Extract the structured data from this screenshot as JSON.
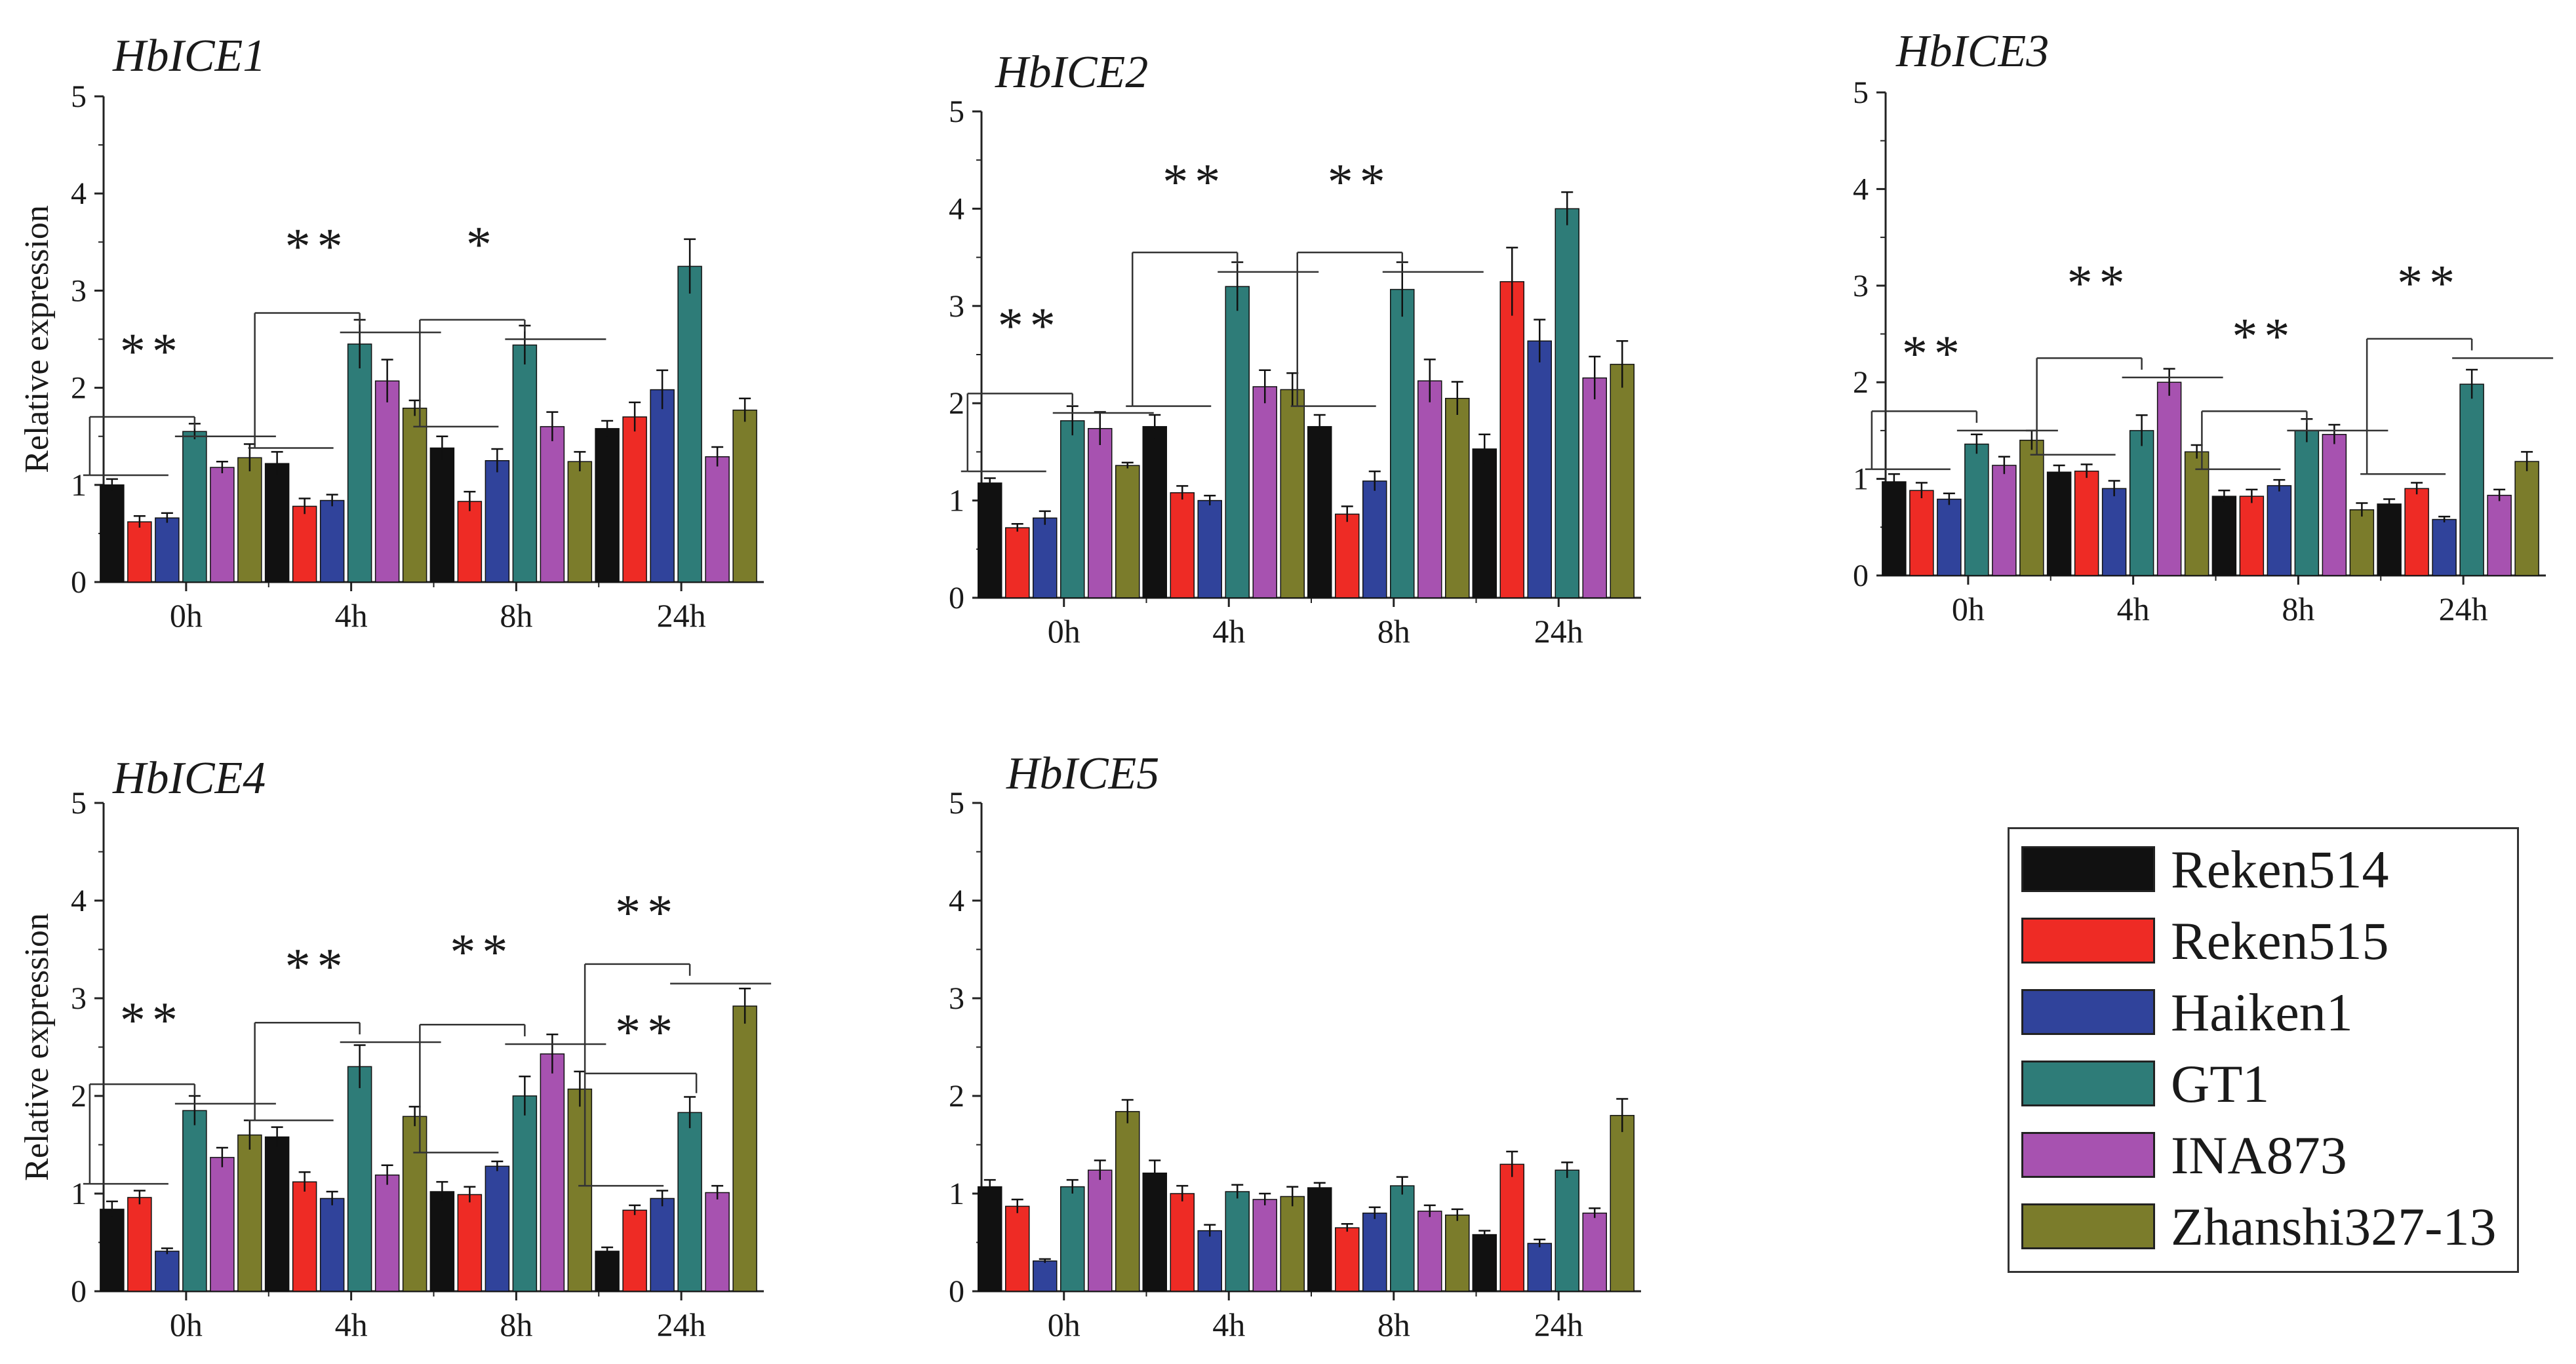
{
  "colors": {
    "Reken514": "#111111",
    "Reken515": "#ee2b25",
    "Haiken1": "#30439b",
    "GT1": "#2e7c78",
    "INA873": "#a752b0",
    "Zhanshi327-13": "#7b7c2b"
  },
  "legend": {
    "items": [
      {
        "label": "Reken514",
        "color": "#111111"
      },
      {
        "label": "Reken515",
        "color": "#ee2b25"
      },
      {
        "label": "Haiken1",
        "color": "#30439b"
      },
      {
        "label": "GT1",
        "color": "#2e7c78"
      },
      {
        "label": "INA873",
        "color": "#a752b0"
      },
      {
        "label": "Zhanshi327-13",
        "color": "#7b7c2b"
      }
    ]
  },
  "chart_data": [
    {
      "type": "bar",
      "title": "HbICE1",
      "ylabel": "Relative expression",
      "xlabel": "",
      "ylim": [
        0,
        5
      ],
      "yticks": [
        0,
        1,
        2,
        3,
        4,
        5
      ],
      "categories": [
        "0h",
        "4h",
        "8h",
        "24h"
      ],
      "series": [
        {
          "name": "Reken514",
          "values": [
            1.0,
            1.22,
            1.38,
            1.58
          ],
          "errors": [
            0.06,
            0.12,
            0.12,
            0.08
          ]
        },
        {
          "name": "Reken515",
          "values": [
            0.62,
            0.78,
            0.83,
            1.7
          ],
          "errors": [
            0.06,
            0.08,
            0.1,
            0.15
          ]
        },
        {
          "name": "Haiken1",
          "values": [
            0.66,
            0.84,
            1.25,
            1.98
          ],
          "errors": [
            0.05,
            0.06,
            0.12,
            0.2
          ]
        },
        {
          "name": "GT1",
          "values": [
            1.55,
            2.45,
            2.44,
            3.25
          ],
          "errors": [
            0.08,
            0.25,
            0.2,
            0.28
          ]
        },
        {
          "name": "INA873",
          "values": [
            1.18,
            2.07,
            1.6,
            1.29
          ],
          "errors": [
            0.06,
            0.22,
            0.15,
            0.1
          ]
        },
        {
          "name": "Zhanshi327-13",
          "values": [
            1.28,
            1.79,
            1.24,
            1.77
          ],
          "errors": [
            0.14,
            0.08,
            0.1,
            0.12
          ]
        }
      ],
      "significance": [
        "**",
        "**",
        "*",
        ""
      ]
    },
    {
      "type": "bar",
      "title": "HbICE2",
      "ylabel": "",
      "xlabel": "",
      "ylim": [
        0,
        5
      ],
      "yticks": [
        0,
        1,
        2,
        3,
        4,
        5
      ],
      "categories": [
        "0h",
        "4h",
        "8h",
        "24h"
      ],
      "series": [
        {
          "name": "Reken514",
          "values": [
            1.18,
            1.76,
            1.76,
            1.53
          ],
          "errors": [
            0.05,
            0.12,
            0.12,
            0.15
          ]
        },
        {
          "name": "Reken515",
          "values": [
            0.72,
            1.08,
            0.86,
            3.25
          ],
          "errors": [
            0.04,
            0.07,
            0.08,
            0.35
          ]
        },
        {
          "name": "Haiken1",
          "values": [
            0.82,
            1.0,
            1.2,
            2.64
          ],
          "errors": [
            0.07,
            0.05,
            0.1,
            0.22
          ]
        },
        {
          "name": "GT1",
          "values": [
            1.82,
            3.2,
            3.17,
            4.0
          ],
          "errors": [
            0.15,
            0.25,
            0.28,
            0.17
          ]
        },
        {
          "name": "INA873",
          "values": [
            1.74,
            2.17,
            2.23,
            2.26
          ],
          "errors": [
            0.17,
            0.17,
            0.22,
            0.22
          ]
        },
        {
          "name": "Zhanshi327-13",
          "values": [
            1.36,
            2.14,
            2.05,
            2.4
          ],
          "errors": [
            0.03,
            0.17,
            0.17,
            0.24
          ]
        }
      ],
      "significance": [
        "**",
        "**",
        "**",
        ""
      ]
    },
    {
      "type": "bar",
      "title": "HbICE3",
      "ylabel": "",
      "xlabel": "",
      "ylim": [
        0,
        5
      ],
      "yticks": [
        0,
        1,
        2,
        3,
        4,
        5
      ],
      "categories": [
        "0h",
        "4h",
        "8h",
        "24h"
      ],
      "series": [
        {
          "name": "Reken514",
          "values": [
            0.97,
            1.07,
            0.82,
            0.74
          ],
          "errors": [
            0.08,
            0.07,
            0.06,
            0.05
          ]
        },
        {
          "name": "Reken515",
          "values": [
            0.88,
            1.08,
            0.82,
            0.9
          ],
          "errors": [
            0.08,
            0.07,
            0.07,
            0.06
          ]
        },
        {
          "name": "Haiken1",
          "values": [
            0.79,
            0.9,
            0.93,
            0.58
          ],
          "errors": [
            0.06,
            0.08,
            0.06,
            0.03
          ]
        },
        {
          "name": "GT1",
          "values": [
            1.36,
            1.5,
            1.5,
            1.98
          ],
          "errors": [
            0.1,
            0.16,
            0.12,
            0.15
          ]
        },
        {
          "name": "INA873",
          "values": [
            1.14,
            2.0,
            1.46,
            0.83
          ],
          "errors": [
            0.09,
            0.14,
            0.1,
            0.06
          ]
        },
        {
          "name": "Zhanshi327-13",
          "values": [
            1.4,
            1.28,
            0.68,
            1.18
          ],
          "errors": [
            0.1,
            0.07,
            0.07,
            0.1
          ]
        }
      ],
      "significance": [
        "**",
        "**",
        "**",
        "**"
      ]
    },
    {
      "type": "bar",
      "title": "HbICE4",
      "ylabel": "Relative expression",
      "xlabel": "",
      "ylim": [
        0,
        5
      ],
      "yticks": [
        0,
        1,
        2,
        3,
        4,
        5
      ],
      "categories": [
        "0h",
        "4h",
        "8h",
        "24h"
      ],
      "series": [
        {
          "name": "Reken514",
          "values": [
            0.84,
            1.58,
            1.02,
            0.41
          ],
          "errors": [
            0.08,
            0.1,
            0.1,
            0.04
          ]
        },
        {
          "name": "Reken515",
          "values": [
            0.96,
            1.12,
            0.99,
            0.83
          ],
          "errors": [
            0.07,
            0.1,
            0.08,
            0.05
          ]
        },
        {
          "name": "Haiken1",
          "values": [
            0.41,
            0.95,
            1.28,
            0.95
          ],
          "errors": [
            0.03,
            0.07,
            0.05,
            0.08
          ]
        },
        {
          "name": "GT1",
          "values": [
            1.85,
            2.3,
            2.0,
            1.83
          ],
          "errors": [
            0.15,
            0.22,
            0.2,
            0.16
          ]
        },
        {
          "name": "INA873",
          "values": [
            1.37,
            1.19,
            2.43,
            1.01
          ],
          "errors": [
            0.1,
            0.1,
            0.2,
            0.07
          ]
        },
        {
          "name": "Zhanshi327-13",
          "values": [
            1.6,
            1.79,
            2.07,
            2.92
          ],
          "errors": [
            0.15,
            0.1,
            0.18,
            0.18
          ]
        }
      ],
      "significance": [
        "**",
        "**",
        "**",
        "** / **"
      ]
    },
    {
      "type": "bar",
      "title": "HbICE5",
      "ylabel": "",
      "xlabel": "",
      "ylim": [
        0,
        5
      ],
      "yticks": [
        0,
        1,
        2,
        3,
        4,
        5
      ],
      "categories": [
        "0h",
        "4h",
        "8h",
        "24h"
      ],
      "series": [
        {
          "name": "Reken514",
          "values": [
            1.07,
            1.21,
            1.06,
            0.58
          ],
          "errors": [
            0.07,
            0.13,
            0.05,
            0.04
          ]
        },
        {
          "name": "Reken515",
          "values": [
            0.87,
            1.0,
            0.65,
            1.3
          ],
          "errors": [
            0.07,
            0.08,
            0.04,
            0.13
          ]
        },
        {
          "name": "Haiken1",
          "values": [
            0.31,
            0.62,
            0.8,
            0.49
          ],
          "errors": [
            0.02,
            0.06,
            0.06,
            0.04
          ]
        },
        {
          "name": "GT1",
          "values": [
            1.07,
            1.02,
            1.08,
            1.24
          ],
          "errors": [
            0.07,
            0.07,
            0.09,
            0.08
          ]
        },
        {
          "name": "INA873",
          "values": [
            1.24,
            0.94,
            0.82,
            0.8
          ],
          "errors": [
            0.1,
            0.06,
            0.06,
            0.05
          ]
        },
        {
          "name": "Zhanshi327-13",
          "values": [
            1.84,
            0.97,
            0.78,
            1.8
          ],
          "errors": [
            0.12,
            0.1,
            0.06,
            0.17
          ]
        }
      ],
      "significance": [
        "",
        "",
        "",
        ""
      ]
    }
  ]
}
